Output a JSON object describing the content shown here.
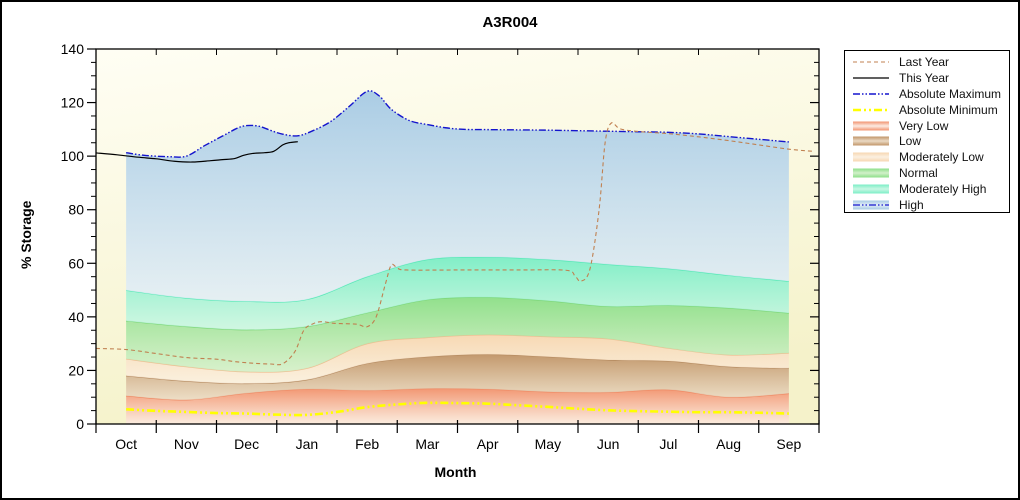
{
  "title": "A3R004",
  "chart_data": {
    "type": "area+line",
    "title": "A3R004",
    "xlabel": "Month",
    "ylabel": "% Storage",
    "x_months": [
      "Oct",
      "Nov",
      "Dec",
      "Jan",
      "Feb",
      "Mar",
      "Apr",
      "May",
      "Jun",
      "Jul",
      "Aug",
      "Sep"
    ],
    "ylim": [
      0,
      140
    ],
    "y_ticks": [
      0,
      20,
      40,
      60,
      80,
      100,
      120,
      140
    ],
    "y_minor_step": 5,
    "grid": false,
    "legend_position": "outside-right",
    "plot_bg": {
      "top": "#FFFEF4",
      "bottom": "#F5F2CA"
    },
    "bands": [
      {
        "name": "Very Low",
        "color_top": "#F2936F",
        "color_bottom": "#FCEBE2",
        "edge": "#EF8A64",
        "top_values": [
          10.5,
          9.0,
          11.5,
          13.0,
          12.5,
          13.2,
          13.0,
          12.0,
          11.8,
          12.8,
          10.0,
          11.4
        ]
      },
      {
        "name": "Low",
        "color_top": "#C09468",
        "color_bottom": "#EBDAC4",
        "edge": "#B58B60",
        "top_values": [
          18.0,
          16.0,
          15.1,
          16.5,
          22.6,
          25.1,
          26.0,
          25.1,
          23.9,
          23.5,
          21.4,
          20.8
        ]
      },
      {
        "name": "Moderately Low",
        "color_top": "#F7D7B2",
        "color_bottom": "#FBF0E1",
        "edge": "#EDBE90",
        "top_values": [
          24.3,
          21.4,
          19.5,
          20.8,
          30.0,
          32.3,
          33.3,
          32.6,
          31.8,
          28.3,
          25.8,
          26.5
        ]
      },
      {
        "name": "Normal",
        "color_top": "#8CDF88",
        "color_bottom": "#D2F0CA",
        "edge": "#7CD678",
        "top_values": [
          38.5,
          36.4,
          35.2,
          36.4,
          41.5,
          46.4,
          47.3,
          46.0,
          43.9,
          44.3,
          43.3,
          41.4
        ]
      },
      {
        "name": "Moderately High",
        "color_top": "#7BEEC6",
        "color_bottom": "#C9F7E4",
        "edge": "#55E8B5",
        "top_values": [
          49.9,
          47.0,
          45.8,
          46.5,
          55.0,
          61.4,
          62.3,
          61.4,
          59.6,
          58.0,
          55.5,
          53.3
        ]
      },
      {
        "name": "High",
        "color_top": "#A6CAE4",
        "color_bottom": "#E2EEF7",
        "edge": null,
        "top_follows": "Absolute Maximum"
      }
    ],
    "series": [
      {
        "name": "Absolute Minimum",
        "style": "dash-dot-dot-thick",
        "color": "#FFFF00",
        "width": 2.6,
        "points": [
          [
            0.5,
            5.5
          ],
          [
            1,
            4.9
          ],
          [
            1.5,
            4.5
          ],
          [
            2,
            4.1
          ],
          [
            2.5,
            3.9
          ],
          [
            3,
            3.5
          ],
          [
            3.5,
            3.4
          ],
          [
            4,
            4.5
          ],
          [
            4.5,
            6.3
          ],
          [
            5,
            7.3
          ],
          [
            5.5,
            7.9
          ],
          [
            6,
            7.8
          ],
          [
            6.5,
            7.6
          ],
          [
            7,
            7.0
          ],
          [
            7.5,
            6.4
          ],
          [
            8,
            5.7
          ],
          [
            8.5,
            5.1
          ],
          [
            9,
            4.8
          ],
          [
            9.5,
            4.6
          ],
          [
            10,
            4.4
          ],
          [
            10.5,
            4.4
          ],
          [
            11,
            4.2
          ],
          [
            11.5,
            3.9
          ]
        ]
      },
      {
        "name": "Absolute Maximum",
        "style": "dash-dot-dot",
        "color": "#1414CD",
        "width": 1.4,
        "points": [
          [
            0.5,
            101.3
          ],
          [
            0.8,
            100.3
          ],
          [
            1.2,
            99.8
          ],
          [
            1.5,
            100.0
          ],
          [
            1.8,
            103.9
          ],
          [
            2.1,
            107.5
          ],
          [
            2.35,
            110.5
          ],
          [
            2.5,
            111.4
          ],
          [
            2.7,
            111.2
          ],
          [
            2.9,
            109.6
          ],
          [
            3.1,
            108.2
          ],
          [
            3.35,
            107.6
          ],
          [
            3.6,
            109.5
          ],
          [
            3.9,
            113.0
          ],
          [
            4.2,
            118.5
          ],
          [
            4.5,
            124.2
          ],
          [
            4.7,
            122.5
          ],
          [
            4.9,
            117.5
          ],
          [
            5.2,
            113.3
          ],
          [
            5.5,
            111.8
          ],
          [
            5.8,
            110.6
          ],
          [
            6.1,
            110.0
          ],
          [
            6.5,
            109.9
          ],
          [
            7,
            109.8
          ],
          [
            7.5,
            109.7
          ],
          [
            8,
            109.5
          ],
          [
            8.5,
            109.3
          ],
          [
            9,
            109.1
          ],
          [
            9.5,
            108.9
          ],
          [
            10,
            108.3
          ],
          [
            10.5,
            107.3
          ],
          [
            11,
            106.3
          ],
          [
            11.5,
            105.3
          ]
        ]
      },
      {
        "name": "Last Year",
        "style": "dashed",
        "color": "#C08050",
        "width": 1.1,
        "points": [
          [
            0,
            28.2
          ],
          [
            0.5,
            27.8
          ],
          [
            1,
            26.3
          ],
          [
            1.5,
            24.8
          ],
          [
            2,
            24.2
          ],
          [
            2.3,
            23.3
          ],
          [
            2.6,
            22.7
          ],
          [
            2.9,
            22.4
          ],
          [
            3.1,
            22.5
          ],
          [
            3.3,
            27.0
          ],
          [
            3.45,
            35.0
          ],
          [
            3.6,
            37.4
          ],
          [
            3.75,
            38.2
          ],
          [
            3.95,
            37.6
          ],
          [
            4.2,
            37.4
          ],
          [
            4.35,
            37.2
          ],
          [
            4.5,
            36.3
          ],
          [
            4.65,
            40.0
          ],
          [
            4.8,
            52.0
          ],
          [
            4.9,
            59.3
          ],
          [
            5.0,
            58.3
          ],
          [
            5.15,
            57.5
          ],
          [
            6,
            57.5
          ],
          [
            7,
            57.5
          ],
          [
            7.8,
            57.4
          ],
          [
            7.95,
            55.3
          ],
          [
            8.05,
            53.3
          ],
          [
            8.2,
            58.0
          ],
          [
            8.35,
            80.0
          ],
          [
            8.45,
            105.0
          ],
          [
            8.55,
            112.3
          ],
          [
            8.7,
            110.2
          ],
          [
            9,
            109.2
          ],
          [
            9.5,
            108.4
          ],
          [
            10,
            107.2
          ],
          [
            10.5,
            105.8
          ],
          [
            11,
            104.2
          ],
          [
            11.5,
            102.6
          ],
          [
            11.9,
            101.8
          ]
        ]
      },
      {
        "name": "This Year",
        "style": "solid",
        "color": "#000000",
        "width": 1.2,
        "points": [
          [
            0,
            101.2
          ],
          [
            0.35,
            100.5
          ],
          [
            0.7,
            99.6
          ],
          [
            1,
            99.0
          ],
          [
            1.3,
            98.1
          ],
          [
            1.6,
            97.8
          ],
          [
            1.9,
            98.3
          ],
          [
            2.1,
            98.7
          ],
          [
            2.3,
            99.1
          ],
          [
            2.45,
            100.3
          ],
          [
            2.6,
            101.0
          ],
          [
            2.8,
            101.3
          ],
          [
            2.95,
            101.8
          ],
          [
            3.1,
            104.2
          ],
          [
            3.2,
            105.0
          ],
          [
            3.35,
            105.4
          ]
        ]
      }
    ],
    "legend": [
      {
        "label": "Last Year",
        "sample": "line",
        "color": "#C08050",
        "dash": "4 3",
        "width": 1.1
      },
      {
        "label": "This Year",
        "sample": "line",
        "color": "#000000",
        "dash": "",
        "width": 1.2
      },
      {
        "label": "Absolute Maximum",
        "sample": "line",
        "color": "#1414CD",
        "dash": "7 2 1.5 2 1.5 2",
        "width": 1.4
      },
      {
        "label": "Absolute Minimum",
        "sample": "line",
        "color": "#FFFF00",
        "dash": "8 3 2 3 2 3",
        "width": 2.6
      },
      {
        "label": "Very Low",
        "sample": "band",
        "color_top": "#F2936F",
        "color_bottom": "#FCEBE2"
      },
      {
        "label": "Low",
        "sample": "band",
        "color_top": "#C09468",
        "color_bottom": "#EBDAC4"
      },
      {
        "label": "Moderately Low",
        "sample": "band",
        "color_top": "#F7D7B2",
        "color_bottom": "#FBF0E1"
      },
      {
        "label": "Normal",
        "sample": "band",
        "color_top": "#8CDF88",
        "color_bottom": "#D2F0CA"
      },
      {
        "label": "Moderately High",
        "sample": "band",
        "color_top": "#7BEEC6",
        "color_bottom": "#C9F7E4"
      },
      {
        "label": "High",
        "sample": "band-line",
        "color_top": "#A6CAE4",
        "color_bottom": "#E2EEF7",
        "line_color": "#1414CD",
        "dash": "7 2 1.5 2 1.5 2"
      }
    ]
  }
}
